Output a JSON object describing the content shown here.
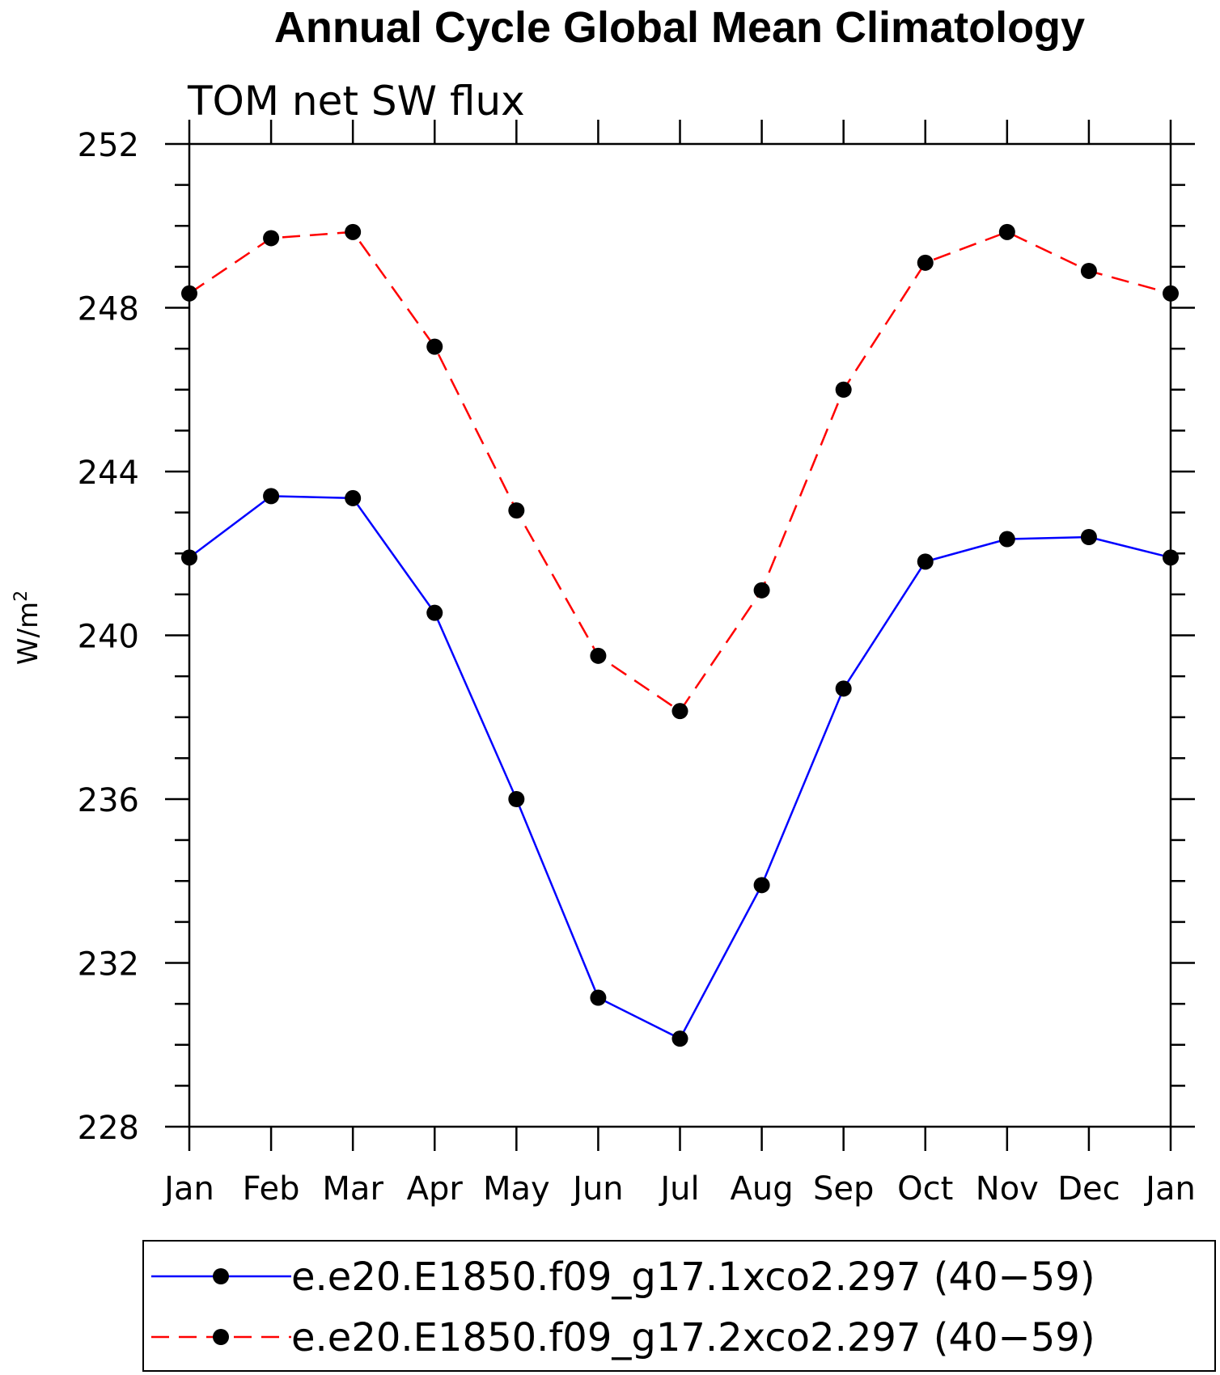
{
  "chart_data": {
    "type": "line",
    "title": "Annual Cycle Global Mean Climatology",
    "subtitle": "TOM net SW flux",
    "ylabel": "W/m",
    "ylabel_superscript": "2",
    "xlabel": "",
    "categories": [
      "Jan",
      "Feb",
      "Mar",
      "Apr",
      "May",
      "Jun",
      "Jul",
      "Aug",
      "Sep",
      "Oct",
      "Nov",
      "Dec",
      "Jan"
    ],
    "ylim": [
      228,
      252
    ],
    "yticks": [
      "228",
      "232",
      "236",
      "240",
      "244",
      "248",
      "252"
    ],
    "grid": false,
    "legend_placement": "bottom",
    "series": [
      {
        "name": "e.e20.E1850.f09_g17.1xco2.297 (40−59)",
        "color": "#0000ff",
        "line_style": "solid",
        "marker": "filled-circle",
        "marker_color": "#000000",
        "values": [
          241.9,
          243.4,
          243.35,
          240.55,
          236.0,
          231.15,
          230.15,
          233.9,
          238.7,
          241.8,
          242.35,
          242.4,
          241.9
        ]
      },
      {
        "name": "e.e20.E1850.f09_g17.2xco2.297 (40−59)",
        "color": "#ff0000",
        "line_style": "dashed",
        "marker": "filled-circle",
        "marker_color": "#000000",
        "values": [
          248.35,
          249.7,
          249.85,
          247.05,
          243.05,
          239.5,
          238.15,
          241.1,
          246.0,
          249.1,
          249.85,
          248.9,
          248.35
        ]
      }
    ]
  }
}
